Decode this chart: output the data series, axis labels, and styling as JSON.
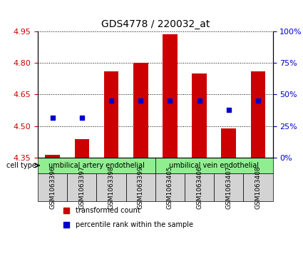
{
  "title": "GDS4778 / 220032_at",
  "samples": [
    "GSM1063396",
    "GSM1063397",
    "GSM1063398",
    "GSM1063399",
    "GSM1063405",
    "GSM1063406",
    "GSM1063407",
    "GSM1063408"
  ],
  "transformed_counts": [
    4.365,
    4.44,
    4.76,
    4.8,
    4.935,
    4.75,
    4.49,
    4.76
  ],
  "percentile_ranks": [
    32,
    32,
    45,
    45,
    45,
    45,
    38,
    45
  ],
  "bar_base": 4.35,
  "ylim_left": [
    4.35,
    4.95
  ],
  "ylim_right": [
    0,
    100
  ],
  "yticks_left": [
    4.35,
    4.5,
    4.65,
    4.8,
    4.95
  ],
  "yticks_right": [
    0,
    25,
    50,
    75,
    100
  ],
  "ytick_labels_right": [
    "0%",
    "25%",
    "50%",
    "75%",
    "100%"
  ],
  "bar_color": "#cc0000",
  "dot_color": "#0000cc",
  "grid_color": "#000000",
  "groups": [
    {
      "label": "umbilical artery endothelial",
      "samples": [
        "GSM1063396",
        "GSM1063397",
        "GSM1063398",
        "GSM1063399"
      ],
      "color": "#90ee90"
    },
    {
      "label": "umbilical vein endothelial",
      "samples": [
        "GSM1063405",
        "GSM1063406",
        "GSM1063407",
        "GSM1063408"
      ],
      "color": "#90ee90"
    }
  ],
  "cell_type_label": "cell type",
  "legend_items": [
    {
      "label": "transformed count",
      "color": "#cc0000",
      "marker": "s"
    },
    {
      "label": "percentile rank within the sample",
      "color": "#0000cc",
      "marker": "s"
    }
  ],
  "tick_label_color_left": "#cc0000",
  "tick_label_color_right": "#0000cc",
  "xlabel_area_height": 0.28,
  "bar_width": 0.5
}
